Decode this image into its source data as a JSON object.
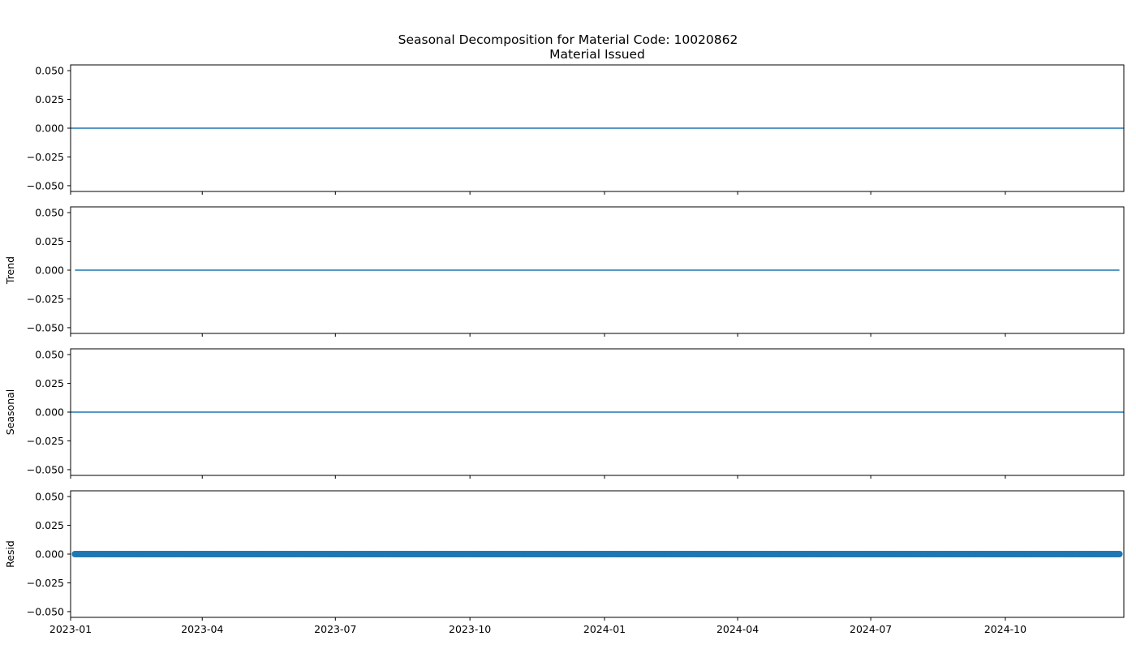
{
  "chart_data": {
    "type": "line",
    "title": "Seasonal Decomposition for Material Code: 10020862",
    "x_range": [
      "2023-01-01",
      "2024-12-21"
    ],
    "x_ticks": [
      "2023-01",
      "2023-04",
      "2023-07",
      "2023-10",
      "2024-01",
      "2024-04",
      "2024-07",
      "2024-10"
    ],
    "ylim": [
      -0.055,
      0.055
    ],
    "y_ticks": [
      "0.050",
      "0.025",
      "0.000",
      "−0.025",
      "−0.050"
    ],
    "y_tick_values": [
      0.05,
      0.025,
      0.0,
      -0.025,
      -0.05
    ],
    "grid": false,
    "panels": [
      {
        "name": "observed",
        "title": "Material Issued",
        "ylabel": "",
        "style": "line",
        "x_start": "2023-01-01",
        "x_end": "2024-12-21",
        "values": [
          0.0
        ]
      },
      {
        "name": "trend",
        "title": "",
        "ylabel": "Trend",
        "style": "line",
        "x_start": "2023-01-04",
        "x_end": "2024-12-18",
        "values": [
          0.0
        ]
      },
      {
        "name": "seasonal",
        "title": "",
        "ylabel": "Seasonal",
        "style": "line",
        "x_start": "2023-01-01",
        "x_end": "2024-12-21",
        "values": [
          0.0
        ]
      },
      {
        "name": "resid",
        "title": "",
        "ylabel": "Resid",
        "style": "scatter",
        "x_start": "2023-01-04",
        "x_end": "2024-12-18",
        "values": [
          0.0
        ]
      }
    ],
    "colors": {
      "series": "#1f77b4",
      "axis": "#000000"
    }
  }
}
